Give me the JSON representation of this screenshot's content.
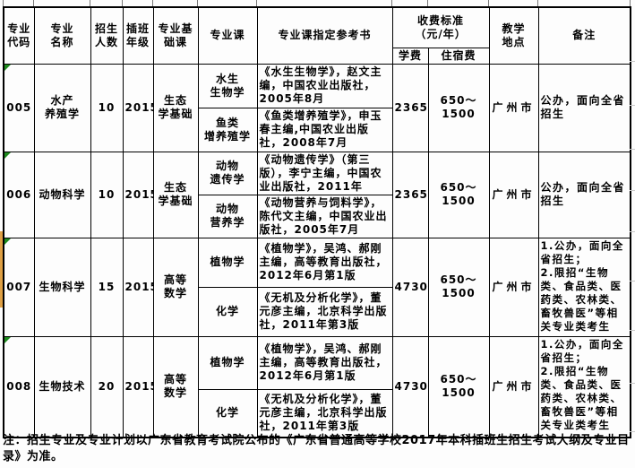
{
  "table": {
    "headers": {
      "major_code": "专业\n代码",
      "major_name": "专业\n名称",
      "enrollment": "招生\n人数",
      "grade": "插班\n年级",
      "basic_course": "专业基\n础课",
      "major_course": "专业课",
      "reference": "专业课指定参考书",
      "fee_standard": "收费标准\n（元/年）",
      "tuition": "学费",
      "accommodation": "住宿费",
      "location": "教学\n地点",
      "remarks": "备注"
    },
    "rows": [
      {
        "code": "005",
        "name": "水产\n养殖学",
        "enrollment": "10",
        "grade": "2015",
        "basic_course": "生态\n学基础",
        "courses": [
          {
            "course": "水生\n生物学",
            "reference": "《水生生物学》，赵文主编，中国农业出版社，2005年8月"
          },
          {
            "course": "鱼类\n增养殖学",
            "reference": "《鱼类增养殖学》，申玉春主编,中国农业出版社，2008年7月"
          }
        ],
        "tuition": "2365",
        "accommodation": "650～1500",
        "location": "广州市",
        "remarks": "公办，面向全省招生"
      },
      {
        "code": "006",
        "name": "动物科学",
        "enrollment": "10",
        "grade": "2015",
        "basic_course": "生态\n学基础",
        "courses": [
          {
            "course": "动物\n遗传学",
            "reference": "《动物遗传学》（第三版），李宁主编，中国农业出版社，2011年"
          },
          {
            "course": "动物\n营养学",
            "reference": "《动物营养与饲料学》，陈代文主编，中国农业出版社，2005年7月"
          }
        ],
        "tuition": "2365",
        "accommodation": "650～1500",
        "location": "广州市",
        "remarks": "公办，面向全省招生"
      },
      {
        "code": "007",
        "name": "生物科学",
        "enrollment": "15",
        "grade": "2015",
        "basic_course": "高等\n数学",
        "courses": [
          {
            "course": "植物学",
            "reference": "《植物学》，吴鸿、郝刚主编，高等教育出版社，2012年6月第1版"
          },
          {
            "course": "化学",
            "reference": "《无机及分析化学》，董元彦主编，北京科学出版社，2011年第3版"
          }
        ],
        "tuition": "4730",
        "accommodation": "650～1500",
        "location": "广州市",
        "remarks": "1.公办，面向全省招生；\n2.限招“生物类、食品类、医药类、畜牧兽医”等相关专业类考生",
        "remarks_full": "1.公办，面向全省招生；\n2.限招“生物类、食品类、医药类、农林类、畜牧兽医”等相关专业类考生"
      },
      {
        "code": "008",
        "name": "生物技术",
        "enrollment": "20",
        "grade": "2015",
        "basic_course": "高等\n数学",
        "courses": [
          {
            "course": "植物学",
            "reference": "《植物学》，吴鸿、郝刚主编，高等教育出版社，2012年6月第1版"
          },
          {
            "course": "化学",
            "reference": "《无机及分析化学》，董元彦主编，北京科学出版社，2011年第3版"
          }
        ],
        "tuition": "4730",
        "accommodation": "650～1500",
        "location": "广州市",
        "remarks_full": "1.公办，面向全省招生；\n2.限招“生物类、食品类、医药类、农林类、畜牧兽医”等相关专业类考生"
      }
    ]
  },
  "footnote": "注：招生专业及专业计划以广东省教育考试院公布的《广东省普通高等学校2017年本科插班生招生考试大纲及专业目录》为准。",
  "colors": {
    "border": "#000000",
    "error_marker_green": "#1e8a1e",
    "left_strip_orange": "#dfa044"
  }
}
